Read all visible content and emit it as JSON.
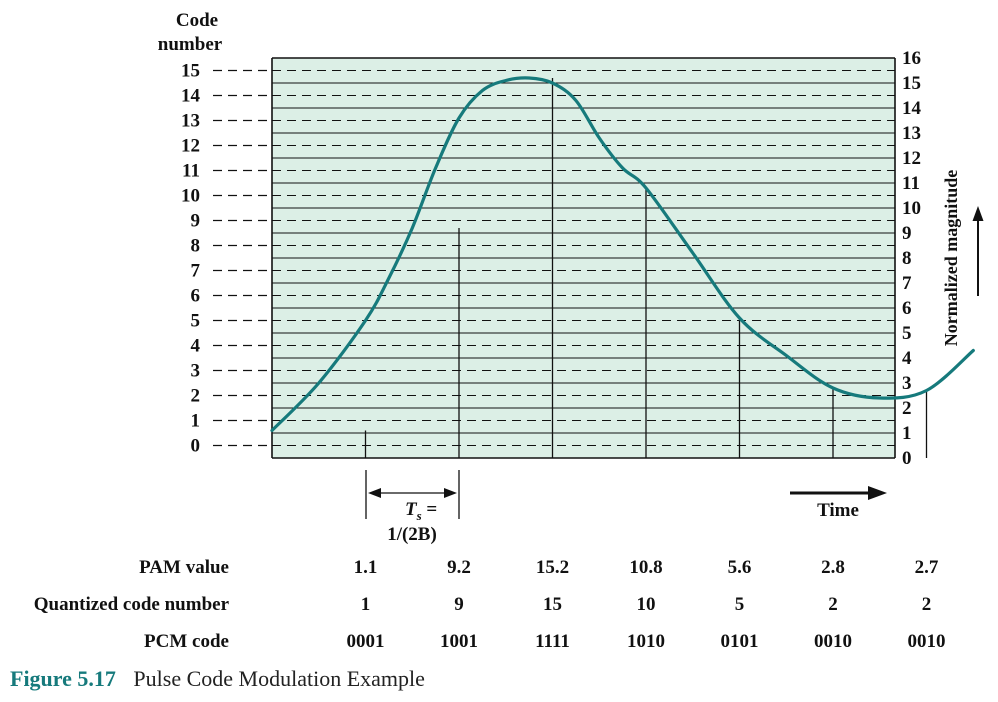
{
  "chart_data": {
    "type": "line",
    "left_axis_title_line1": "Code",
    "left_axis_title_line2": "number",
    "right_axis_title": "Normalized magnitude",
    "left_ticks": [
      "0",
      "1",
      "2",
      "3",
      "4",
      "5",
      "6",
      "7",
      "8",
      "9",
      "10",
      "11",
      "12",
      "13",
      "14",
      "15"
    ],
    "right_ticks": [
      "0",
      "1",
      "2",
      "3",
      "4",
      "5",
      "6",
      "7",
      "8",
      "9",
      "10",
      "11",
      "12",
      "13",
      "14",
      "15",
      "16"
    ],
    "ylim": [
      0,
      16
    ],
    "grid": true,
    "sample_index": [
      1,
      2,
      3,
      4,
      5,
      6,
      7
    ],
    "pam_values": [
      1.1,
      9.2,
      15.2,
      10.8,
      5.6,
      2.8,
      2.7
    ],
    "curve": {
      "x": [
        0.0,
        0.5,
        1.0,
        1.25,
        1.5,
        1.75,
        2.0,
        2.25,
        2.5,
        2.75,
        3.0,
        3.25,
        3.5,
        3.75,
        4.0,
        4.5,
        5.0,
        5.5,
        6.0,
        6.5,
        7.0,
        7.5
      ],
      "y": [
        1.1,
        3.0,
        5.5,
        7.2,
        9.2,
        11.6,
        13.6,
        14.7,
        15.1,
        15.2,
        15.0,
        14.3,
        12.8,
        11.6,
        10.8,
        8.2,
        5.6,
        4.1,
        2.8,
        2.4,
        2.7,
        4.3
      ]
    },
    "interval": {
      "label_main": "T",
      "label_sub": "s",
      "label_eq": " =",
      "label_line2": "1/(2B)"
    },
    "time_label": "Time"
  },
  "rows": [
    {
      "label": "PAM value",
      "cells": [
        "1.1",
        "9.2",
        "15.2",
        "10.8",
        "5.6",
        "2.8",
        "2.7"
      ]
    },
    {
      "label": "Quantized code number",
      "cells": [
        "1",
        "9",
        "15",
        "10",
        "5",
        "2",
        "2"
      ]
    },
    {
      "label": "PCM code",
      "cells": [
        "0001",
        "1001",
        "1111",
        "1010",
        "0101",
        "0010",
        "0010"
      ]
    }
  ],
  "caption": {
    "figure_number": "Figure 5.17",
    "title": "Pulse Code Modulation Example"
  },
  "colors": {
    "plot_bg": "#dcefe6",
    "curve": "#167a7c",
    "caption_accent": "#167a7c",
    "grid": "#111111"
  }
}
